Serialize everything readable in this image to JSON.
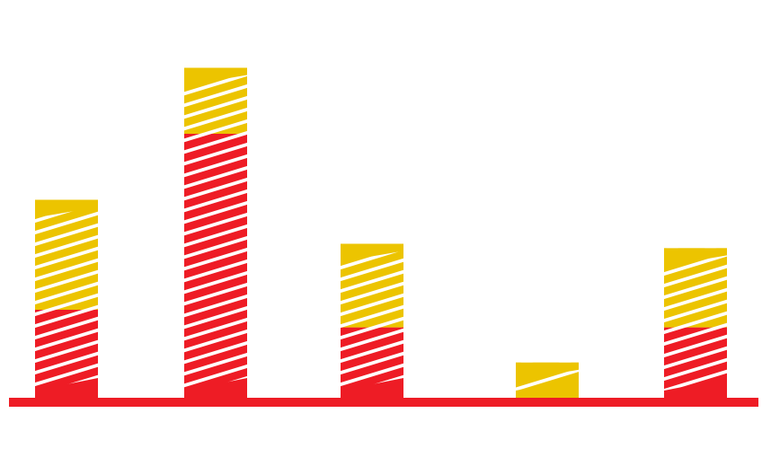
{
  "chart_data": {
    "type": "bar",
    "stacked": true,
    "categories": [
      "",
      "",
      "",
      "",
      ""
    ],
    "series": [
      {
        "color": "#ee1c25",
        "values": [
          100,
          300,
          80,
          0,
          80
        ]
      },
      {
        "color": "#ecc400",
        "values": [
          125,
          75,
          95,
          40,
          90
        ]
      }
    ],
    "pattern": "diagonal-stripes",
    "baseline_color": "#ee1c25",
    "grid": false,
    "legend": "none"
  }
}
